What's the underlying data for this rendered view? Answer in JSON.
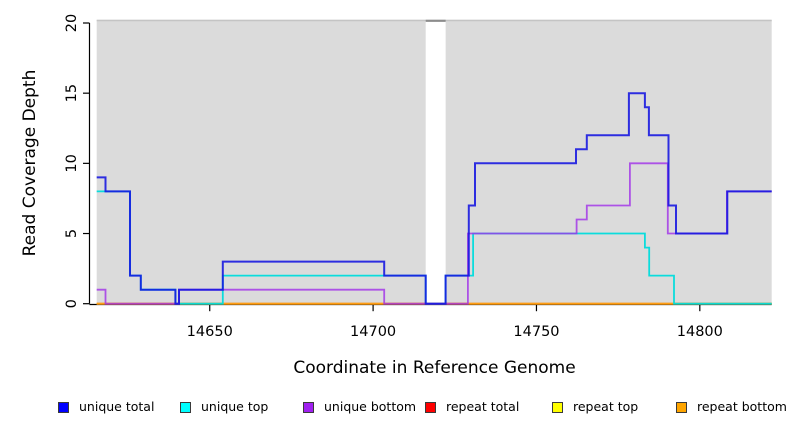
{
  "chart_data": {
    "type": "line",
    "subtype": "step-coverage",
    "title": "",
    "xlabel": "Coordinate in Reference Genome",
    "ylabel": "Read Coverage Depth",
    "xlim": [
      14615.4,
      14822
    ],
    "ylim": [
      0,
      20
    ],
    "grid": false,
    "legend_position": "bottom",
    "panel_bg": "#DBDBDB",
    "panel_top_edge_color": "#C4C4C4",
    "masked_region": {
      "from": 14716.1,
      "to": 14722.2,
      "fill": "#FFFFFF",
      "cap_color": "#8C8C8C"
    },
    "xticks": [
      {
        "value": 14650,
        "label": "14650"
      },
      {
        "value": 14700,
        "label": "14700"
      },
      {
        "value": 14750,
        "label": "14750"
      },
      {
        "value": 14800,
        "label": "14800"
      }
    ],
    "yticks": [
      {
        "value": 0,
        "label": "0"
      },
      {
        "value": 5,
        "label": "5"
      },
      {
        "value": 10,
        "label": "10"
      },
      {
        "value": 15,
        "label": "15"
      },
      {
        "value": 20,
        "label": "20"
      }
    ],
    "legend": [
      {
        "label": "unique total",
        "swatch": "#0000FF"
      },
      {
        "label": "unique top",
        "swatch": "#00FFFF"
      },
      {
        "label": "unique bottom",
        "swatch": "#A020F0"
      },
      {
        "label": "repeat total",
        "swatch": "#FF0000"
      },
      {
        "label": "repeat top",
        "swatch": "#FFFF00"
      },
      {
        "label": "repeat bottom",
        "swatch": "#FFA500"
      }
    ],
    "series": [
      {
        "name": "repeat total",
        "color": "#E01414",
        "opacity": 1,
        "width": 1.6,
        "points": [
          [
            14615.4,
            0
          ],
          [
            14822,
            0
          ]
        ]
      },
      {
        "name": "repeat top",
        "color": "#FFE014",
        "opacity": 1,
        "width": 1.6,
        "points": [
          [
            14615.4,
            0
          ],
          [
            14822,
            0
          ]
        ]
      },
      {
        "name": "repeat bottom",
        "color": "#FF9E14",
        "opacity": 1,
        "width": 2,
        "points": [
          [
            14615.4,
            0
          ],
          [
            14822,
            0
          ]
        ]
      },
      {
        "name": "unique top",
        "color": "#00DCDC",
        "opacity": 0.95,
        "width": 1.8,
        "points": [
          [
            14615.4,
            8
          ],
          [
            14625.6,
            2
          ],
          [
            14628.9,
            1
          ],
          [
            14639.5,
            0
          ],
          [
            14654,
            2
          ],
          [
            14716.1,
            0
          ],
          [
            14722.2,
            2
          ],
          [
            14730.6,
            5
          ],
          [
            14783.2,
            4
          ],
          [
            14784.5,
            2
          ],
          [
            14792.1,
            0
          ],
          [
            14822,
            0
          ]
        ]
      },
      {
        "name": "unique bottom",
        "color": "#A030E8",
        "opacity": 0.8,
        "width": 1.8,
        "points": [
          [
            14615.4,
            1
          ],
          [
            14618.1,
            0
          ],
          [
            14640.6,
            1
          ],
          [
            14703.4,
            0
          ],
          [
            14729,
            5
          ],
          [
            14762.3,
            6
          ],
          [
            14765.4,
            7
          ],
          [
            14778.6,
            10
          ],
          [
            14790.2,
            5
          ],
          [
            14808.3,
            8
          ],
          [
            14822,
            8
          ]
        ]
      },
      {
        "name": "unique total",
        "color": "#1515E0",
        "opacity": 0.88,
        "width": 2,
        "points": [
          [
            14615.4,
            9
          ],
          [
            14618.1,
            8
          ],
          [
            14625.6,
            2
          ],
          [
            14628.9,
            1
          ],
          [
            14639.5,
            0
          ],
          [
            14640.6,
            1
          ],
          [
            14654,
            3
          ],
          [
            14703.4,
            2
          ],
          [
            14716.1,
            0
          ],
          [
            14722.2,
            2
          ],
          [
            14729.3,
            7
          ],
          [
            14731.2,
            10
          ],
          [
            14762.1,
            11
          ],
          [
            14765.4,
            12
          ],
          [
            14778.3,
            15
          ],
          [
            14783.2,
            14
          ],
          [
            14784.4,
            12
          ],
          [
            14790.4,
            7
          ],
          [
            14792.7,
            5
          ],
          [
            14808.4,
            8
          ],
          [
            14822,
            8
          ]
        ]
      }
    ]
  }
}
